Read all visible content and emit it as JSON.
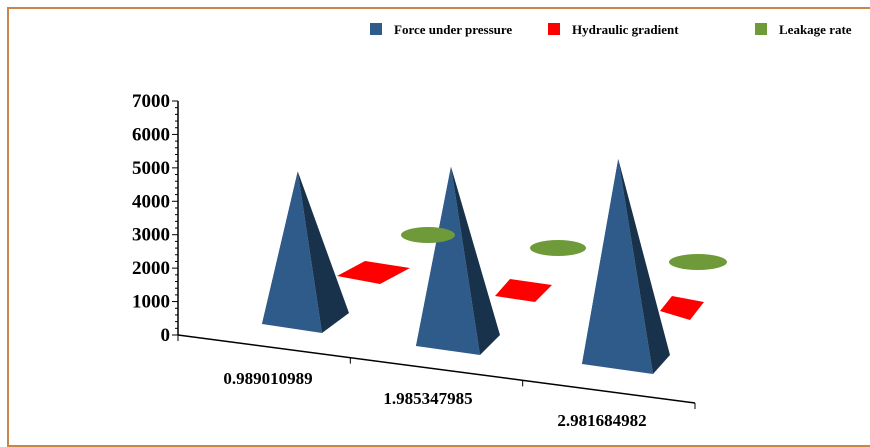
{
  "chart_data": {
    "type": "bar",
    "subtype": "3d-pyramid",
    "categories": [
      "0.989010989",
      "1.985347985",
      "2.981684982"
    ],
    "series": [
      {
        "name": "Force under pressure",
        "values": [
          4400,
          5200,
          6000
        ],
        "color": "#2e5b8a",
        "shape": "pyramid"
      },
      {
        "name": "Hydraulic gradient",
        "values": [
          0,
          0,
          0
        ],
        "color": "#ff0000",
        "shape": "flat-square"
      },
      {
        "name": "Leakage rate",
        "values": [
          0,
          0,
          0
        ],
        "color": "#6e9a3a",
        "shape": "flat-ellipse"
      }
    ],
    "ylim": [
      0,
      7000
    ],
    "yticks": [
      0,
      1000,
      2000,
      3000,
      4000,
      5000,
      6000,
      7000
    ],
    "legend_position": "top",
    "grid": false
  },
  "colors": {
    "frame_border": "#c8864b"
  }
}
